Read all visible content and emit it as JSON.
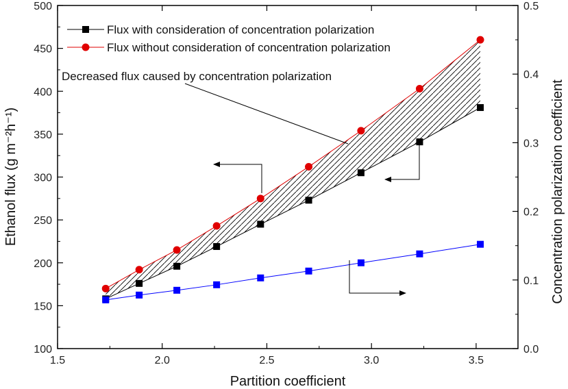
{
  "chart_data": {
    "type": "line",
    "title": "",
    "xlabel": "Partition coefficient",
    "ylabel": "Ethanol flux (g m⁻²h⁻¹)",
    "y2label": "Concentration polarization coefficient",
    "xlim": [
      1.5,
      3.7
    ],
    "ylim": [
      100,
      500
    ],
    "y2lim": [
      0.0,
      0.5
    ],
    "x_ticks": [
      "1.5",
      "2.0",
      "2.5",
      "3.0",
      "3.5"
    ],
    "y_ticks": [
      "100",
      "150",
      "200",
      "250",
      "300",
      "350",
      "400",
      "450",
      "500"
    ],
    "y2_ticks": [
      "0.0",
      "0.1",
      "0.2",
      "0.3",
      "0.4",
      "0.5"
    ],
    "x": [
      1.73,
      1.89,
      2.07,
      2.26,
      2.47,
      2.7,
      2.95,
      3.23,
      3.52
    ],
    "series": [
      {
        "name": "Flux with consideration of concentration polarization",
        "axis": "left",
        "marker": "square",
        "color": "#000000",
        "values": [
          158,
          176,
          196,
          219,
          245,
          273,
          305,
          341,
          381
        ]
      },
      {
        "name": "Flux without consideration of concentration polarization",
        "axis": "left",
        "marker": "circle",
        "color": "#e00000",
        "values": [
          170,
          192,
          215,
          243,
          275,
          312,
          354,
          403,
          460
        ]
      },
      {
        "name": "Concentration polarization coefficient",
        "axis": "right",
        "marker": "square",
        "color": "#0000ff",
        "values": [
          0.071,
          0.078,
          0.085,
          0.093,
          0.103,
          0.113,
          0.125,
          0.138,
          0.152
        ]
      }
    ],
    "legend_position": "top-left",
    "annotations": [
      "Decreased flux caused by concentration polarization"
    ]
  }
}
